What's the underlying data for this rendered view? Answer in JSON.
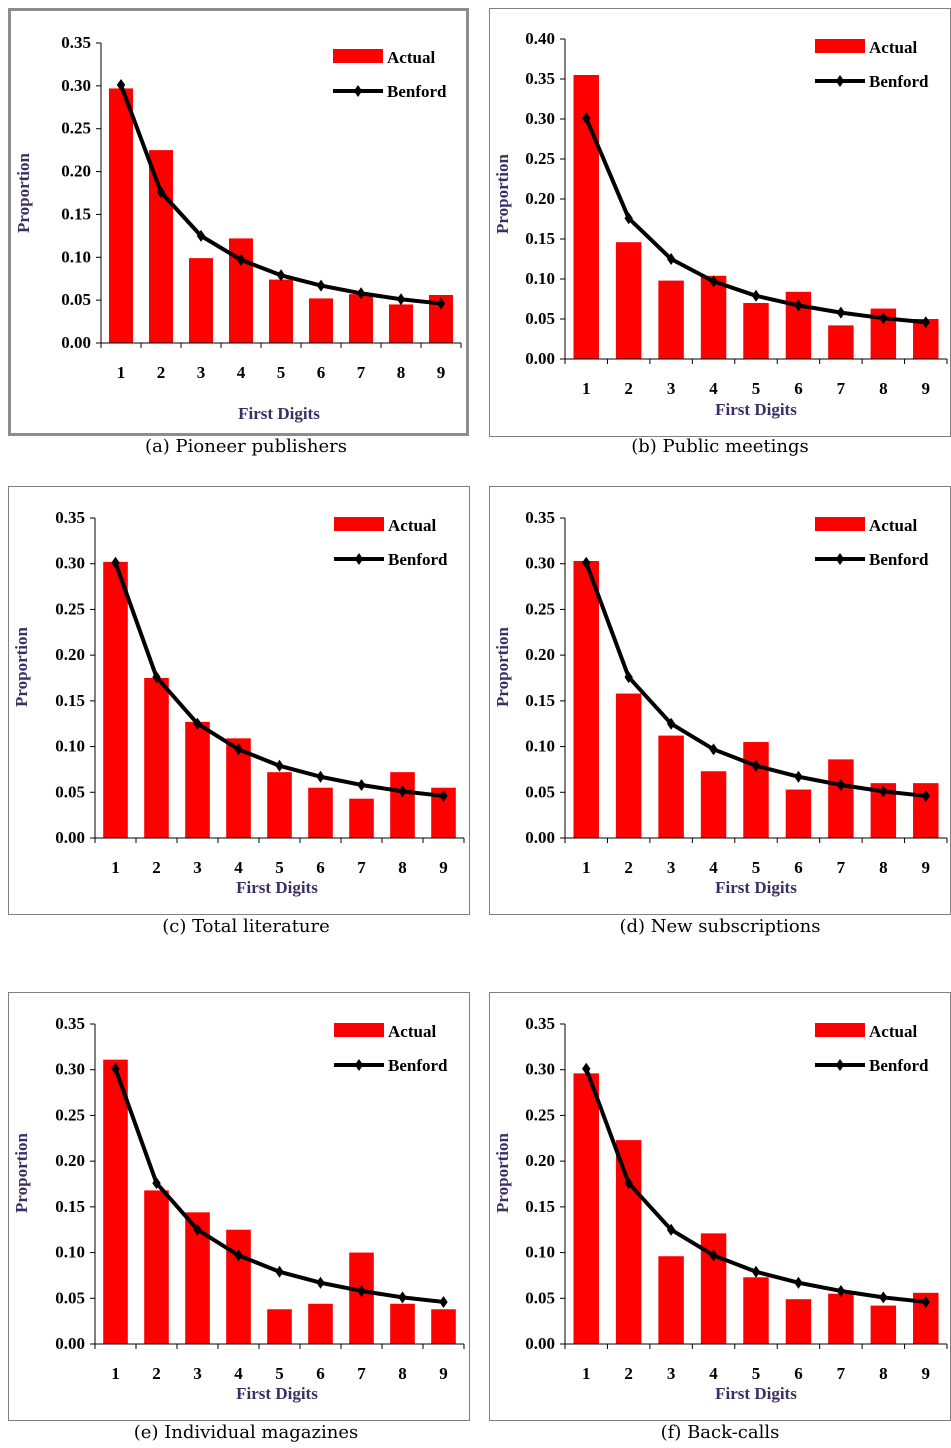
{
  "colors": {
    "actual": "#ff0000",
    "benford": "#000000",
    "axis_title": "#3b2f63"
  },
  "chart_data": [
    {
      "id": "a",
      "type": "bar",
      "caption": "(a) Pioneer publishers",
      "categories": [
        "1",
        "2",
        "3",
        "4",
        "5",
        "6",
        "7",
        "8",
        "9"
      ],
      "series": [
        {
          "name": "Actual",
          "type": "bar",
          "values": [
            0.297,
            0.225,
            0.099,
            0.122,
            0.074,
            0.052,
            0.057,
            0.045,
            0.056
          ]
        },
        {
          "name": "Benford",
          "type": "line",
          "values": [
            0.301,
            0.176,
            0.125,
            0.097,
            0.079,
            0.067,
            0.058,
            0.051,
            0.046
          ]
        }
      ],
      "xlabel": "First Digits",
      "ylabel": "Proportion",
      "ylim": [
        0,
        0.35
      ],
      "yticks": [
        "0.00",
        "0.05",
        "0.10",
        "0.15",
        "0.20",
        "0.25",
        "0.30",
        "0.35"
      ],
      "legend": "top-right",
      "grid": false
    },
    {
      "id": "b",
      "type": "bar",
      "caption": "(b) Public meetings",
      "categories": [
        "1",
        "2",
        "3",
        "4",
        "5",
        "6",
        "7",
        "8",
        "9"
      ],
      "series": [
        {
          "name": "Actual",
          "type": "bar",
          "values": [
            0.355,
            0.146,
            0.098,
            0.104,
            0.07,
            0.084,
            0.042,
            0.063,
            0.05
          ]
        },
        {
          "name": "Benford",
          "type": "line",
          "values": [
            0.301,
            0.176,
            0.125,
            0.097,
            0.079,
            0.067,
            0.058,
            0.051,
            0.046
          ]
        }
      ],
      "xlabel": "First Digits",
      "ylabel": "Proportion",
      "ylim": [
        0,
        0.4
      ],
      "yticks": [
        "0.00",
        "0.05",
        "0.10",
        "0.15",
        "0.20",
        "0.25",
        "0.30",
        "0.35",
        "0.40"
      ],
      "legend": "top-right",
      "grid": false
    },
    {
      "id": "c",
      "type": "bar",
      "caption": "(c) Total literature",
      "categories": [
        "1",
        "2",
        "3",
        "4",
        "5",
        "6",
        "7",
        "8",
        "9"
      ],
      "series": [
        {
          "name": "Actual",
          "type": "bar",
          "values": [
            0.302,
            0.175,
            0.127,
            0.109,
            0.072,
            0.055,
            0.043,
            0.072,
            0.055
          ]
        },
        {
          "name": "Benford",
          "type": "line",
          "values": [
            0.301,
            0.176,
            0.125,
            0.097,
            0.079,
            0.067,
            0.058,
            0.051,
            0.046
          ]
        }
      ],
      "xlabel": "First Digits",
      "ylabel": "Proportion",
      "ylim": [
        0,
        0.35
      ],
      "yticks": [
        "0.00",
        "0.05",
        "0.10",
        "0.15",
        "0.20",
        "0.25",
        "0.30",
        "0.35"
      ],
      "legend": "top-right",
      "grid": false
    },
    {
      "id": "d",
      "type": "bar",
      "caption": "(d) New subscriptions",
      "categories": [
        "1",
        "2",
        "3",
        "4",
        "5",
        "6",
        "7",
        "8",
        "9"
      ],
      "series": [
        {
          "name": "Actual",
          "type": "bar",
          "values": [
            0.303,
            0.158,
            0.112,
            0.073,
            0.105,
            0.053,
            0.086,
            0.06,
            0.06
          ]
        },
        {
          "name": "Benford",
          "type": "line",
          "values": [
            0.301,
            0.176,
            0.125,
            0.097,
            0.079,
            0.067,
            0.058,
            0.051,
            0.046
          ]
        }
      ],
      "xlabel": "First Digits",
      "ylabel": "Proportion",
      "ylim": [
        0,
        0.35
      ],
      "yticks": [
        "0.00",
        "0.05",
        "0.10",
        "0.15",
        "0.20",
        "0.25",
        "0.30",
        "0.35"
      ],
      "legend": "top-right",
      "grid": false
    },
    {
      "id": "e",
      "type": "bar",
      "caption": "(e) Individual magazines",
      "categories": [
        "1",
        "2",
        "3",
        "4",
        "5",
        "6",
        "7",
        "8",
        "9"
      ],
      "series": [
        {
          "name": "Actual",
          "type": "bar",
          "values": [
            0.311,
            0.168,
            0.144,
            0.125,
            0.038,
            0.044,
            0.1,
            0.044,
            0.038
          ]
        },
        {
          "name": "Benford",
          "type": "line",
          "values": [
            0.301,
            0.176,
            0.125,
            0.097,
            0.079,
            0.067,
            0.058,
            0.051,
            0.046
          ]
        }
      ],
      "xlabel": "First Digits",
      "ylabel": "Proportion",
      "ylim": [
        0,
        0.35
      ],
      "yticks": [
        "0.00",
        "0.05",
        "0.10",
        "0.15",
        "0.20",
        "0.25",
        "0.30",
        "0.35"
      ],
      "legend": "top-right",
      "grid": false
    },
    {
      "id": "f",
      "type": "bar",
      "caption": "(f) Back-calls",
      "categories": [
        "1",
        "2",
        "3",
        "4",
        "5",
        "6",
        "7",
        "8",
        "9"
      ],
      "series": [
        {
          "name": "Actual",
          "type": "bar",
          "values": [
            0.296,
            0.223,
            0.096,
            0.121,
            0.073,
            0.049,
            0.055,
            0.042,
            0.056
          ]
        },
        {
          "name": "Benford",
          "type": "line",
          "values": [
            0.301,
            0.176,
            0.125,
            0.097,
            0.079,
            0.067,
            0.058,
            0.051,
            0.046
          ]
        }
      ],
      "xlabel": "First Digits",
      "ylabel": "Proportion",
      "ylim": [
        0,
        0.35
      ],
      "yticks": [
        "0.00",
        "0.05",
        "0.10",
        "0.15",
        "0.20",
        "0.25",
        "0.30",
        "0.35"
      ],
      "legend": "top-right",
      "grid": false
    }
  ]
}
